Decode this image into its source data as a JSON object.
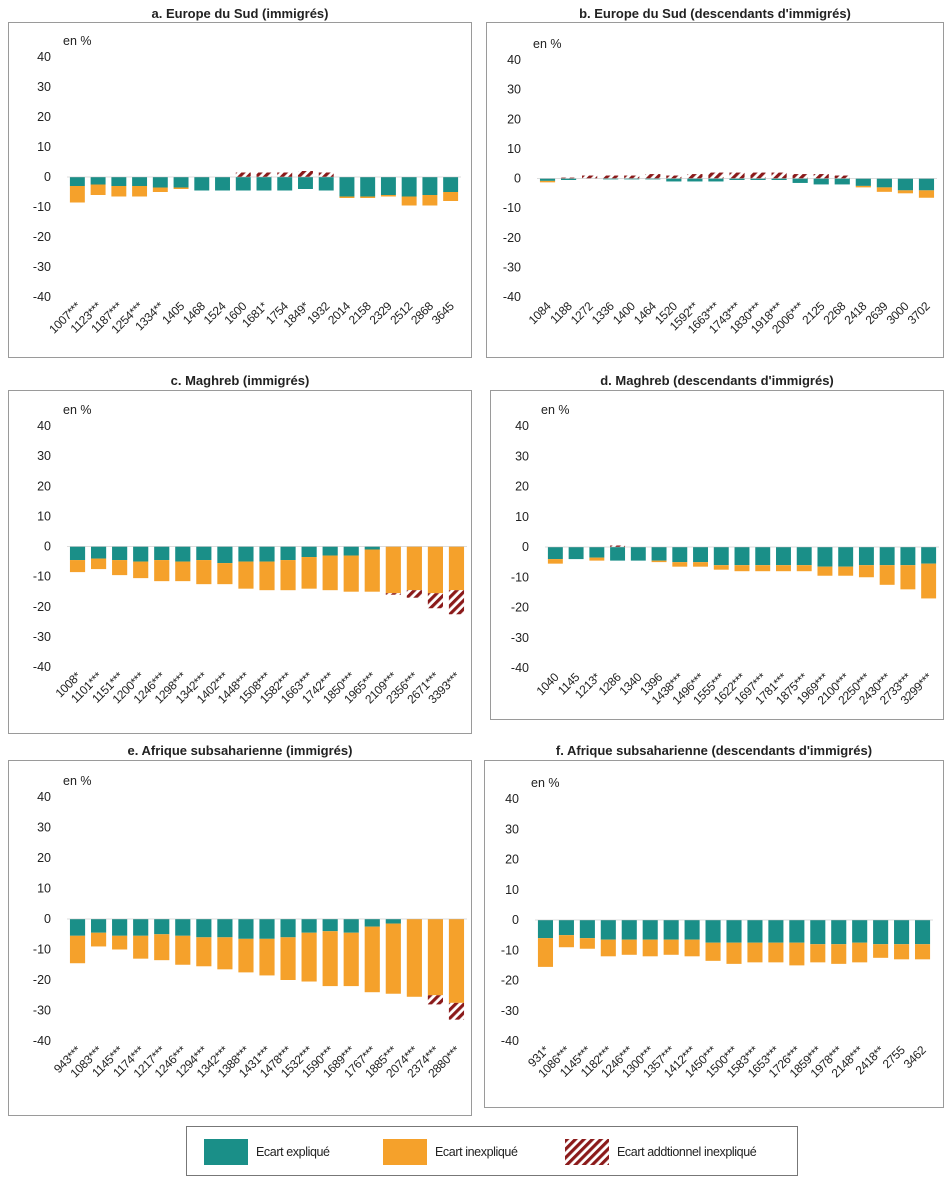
{
  "colors": {
    "explained": "#1a8f88",
    "unexplained": "#f5a12b",
    "additional": "#8b1a1a"
  },
  "legend": {
    "explained": "Ecart expliqué",
    "unexplained": "Ecart inexpliqué",
    "additional": "Ecart addtionnel inexpliqué"
  },
  "chart_data": [
    {
      "type": "bar",
      "stacked": true,
      "title": "a. Europe du Sud (immigrés)",
      "unit": "en %",
      "ylim": [
        -40,
        40
      ],
      "yticks": [
        40,
        30,
        20,
        10,
        0,
        -10,
        -20,
        -30,
        -40
      ],
      "categories": [
        "1007***",
        "1123***",
        "1187***",
        "1254***",
        "1334**",
        "1405",
        "1468",
        "1524",
        "1600",
        "1681*",
        "1754",
        "1849*",
        "1932",
        "2014",
        "2158",
        "2329",
        "2512",
        "2868",
        "3645"
      ],
      "series": [
        {
          "key": "explained",
          "values": [
            -3,
            -2.5,
            -3,
            -3,
            -3.5,
            -3.5,
            -4.5,
            -4.5,
            -4.5,
            -4.5,
            -4.5,
            -4,
            -4.5,
            -6.5,
            -6.5,
            -6,
            -6.5,
            -6,
            -5
          ]
        },
        {
          "key": "unexplained",
          "values": [
            -5.5,
            -3.5,
            -3.5,
            -3.5,
            -1.5,
            -0.5,
            0,
            0,
            0,
            0,
            0,
            0,
            0,
            -0.5,
            -0.5,
            -0.5,
            -3,
            -3.5,
            -3
          ]
        },
        {
          "key": "additional",
          "values": [
            0,
            0,
            0,
            0,
            0,
            0,
            0,
            0,
            1.5,
            1.5,
            1.5,
            2,
            1.5,
            0,
            0,
            0,
            0,
            0,
            0
          ]
        }
      ]
    },
    {
      "type": "bar",
      "stacked": true,
      "title": "b. Europe du Sud (descendants d'immigrés)",
      "unit": "en %",
      "ylim": [
        -40,
        40
      ],
      "yticks": [
        40,
        30,
        20,
        10,
        0,
        -10,
        -20,
        -30,
        -40
      ],
      "categories": [
        "1084",
        "1188",
        "1272",
        "1336",
        "1400",
        "1464",
        "1520",
        "1592**",
        "1663***",
        "1743***",
        "1830***",
        "1918***",
        "2006***",
        "2125",
        "2268",
        "2418",
        "2639",
        "3000",
        "3702"
      ],
      "series": [
        {
          "key": "explained",
          "values": [
            -0.8,
            -0.5,
            0,
            -0.3,
            -0.3,
            -0.3,
            -1,
            -1,
            -1,
            -0.5,
            -0.5,
            -0.5,
            -1.5,
            -2,
            -2,
            -2.5,
            -3,
            -4,
            -4
          ]
        },
        {
          "key": "unexplained",
          "values": [
            -0.5,
            0,
            0,
            0,
            0,
            0,
            0,
            0,
            0,
            0,
            0,
            0,
            0,
            0,
            0,
            -0.5,
            -1.5,
            -1,
            -2.5
          ]
        },
        {
          "key": "additional",
          "values": [
            0,
            0.3,
            1,
            1,
            1,
            1.5,
            1,
            1.5,
            2,
            2,
            2,
            2,
            1.5,
            1.5,
            1,
            0,
            0,
            0,
            0
          ]
        }
      ]
    },
    {
      "type": "bar",
      "stacked": true,
      "title": "c. Maghreb (immigrés)",
      "unit": "en %",
      "ylim": [
        -40,
        40
      ],
      "yticks": [
        40,
        30,
        20,
        10,
        0,
        -10,
        -20,
        -30,
        -40
      ],
      "categories": [
        "1008*",
        "1101***",
        "1151***",
        "1200***",
        "1246***",
        "1298***",
        "1342***",
        "1402***",
        "1448***",
        "1508***",
        "1582***",
        "1663***",
        "1742***",
        "1850***",
        "1965***",
        "2109***",
        "2356***",
        "2671***",
        "3393***"
      ],
      "series": [
        {
          "key": "explained",
          "values": [
            -4.5,
            -4,
            -4.5,
            -5,
            -4.5,
            -5,
            -4.5,
            -5.5,
            -5,
            -5,
            -4.5,
            -3.5,
            -3,
            -3,
            -1,
            0,
            0,
            0,
            0
          ]
        },
        {
          "key": "unexplained",
          "values": [
            -4,
            -3.5,
            -5,
            -5.5,
            -7,
            -6.5,
            -8,
            -7,
            -9,
            -9.5,
            -10,
            -10.5,
            -11.5,
            -12,
            -14,
            -15.5,
            -14.5,
            -15.5,
            -14.5
          ]
        },
        {
          "key": "additional",
          "values": [
            0,
            0,
            0,
            0,
            0,
            0,
            0,
            0,
            0,
            0,
            0,
            0,
            0,
            0,
            0,
            -0.5,
            -2.5,
            -5,
            -8
          ]
        }
      ]
    },
    {
      "type": "bar",
      "stacked": true,
      "title": "d. Maghreb (descendants d'immigrés)",
      "unit": "en %",
      "ylim": [
        -40,
        40
      ],
      "yticks": [
        40,
        30,
        20,
        10,
        0,
        -10,
        -20,
        -30,
        -40
      ],
      "categories": [
        "1040",
        "1145",
        "1213*",
        "1286",
        "1340",
        "1396",
        "1438***",
        "1496***",
        "1555***",
        "1622***",
        "1697***",
        "1781***",
        "1875***",
        "1969***",
        "2100***",
        "2250***",
        "2430***",
        "2733***",
        "3299***"
      ],
      "series": [
        {
          "key": "explained",
          "values": [
            -4,
            -4,
            -3.5,
            -4.5,
            -4.5,
            -4.5,
            -5,
            -5,
            -6,
            -6,
            -6,
            -6,
            -6,
            -6.5,
            -6.5,
            -6,
            -6,
            -6,
            -5.5
          ]
        },
        {
          "key": "unexplained",
          "values": [
            -1.5,
            0,
            -1,
            0,
            0,
            -0.5,
            -1.5,
            -1.5,
            -1.5,
            -2,
            -2,
            -2,
            -2,
            -3,
            -3,
            -4,
            -6.5,
            -8,
            -11.5
          ]
        },
        {
          "key": "additional",
          "values": [
            0,
            0,
            0,
            0.5,
            0,
            0,
            0,
            0,
            0,
            0,
            0,
            0,
            0,
            0,
            0,
            0,
            0,
            0,
            0
          ]
        }
      ]
    },
    {
      "type": "bar",
      "stacked": true,
      "title": "e. Afrique subsaharienne (immigrés)",
      "unit": "en %",
      "ylim": [
        -40,
        40
      ],
      "yticks": [
        40,
        30,
        20,
        10,
        0,
        -10,
        -20,
        -30,
        -40
      ],
      "categories": [
        "943***",
        "1083***",
        "1145***",
        "1174***",
        "1217***",
        "1246***",
        "1294***",
        "1342***",
        "1388***",
        "1431***",
        "1478***",
        "1532***",
        "1590***",
        "1689***",
        "1767***",
        "1885***",
        "2074***",
        "2374***",
        "2880***"
      ],
      "series": [
        {
          "key": "explained",
          "values": [
            -5.5,
            -4.5,
            -5.5,
            -5.5,
            -5,
            -5.5,
            -6,
            -6,
            -6.5,
            -6.5,
            -6,
            -4.5,
            -4,
            -4.5,
            -2.5,
            -1.5,
            0,
            0,
            0
          ]
        },
        {
          "key": "unexplained",
          "values": [
            -9,
            -4.5,
            -4.5,
            -7.5,
            -8.5,
            -9.5,
            -9.5,
            -10.5,
            -11,
            -12,
            -14,
            -16,
            -18,
            -17.5,
            -21.5,
            -23,
            -25.5,
            -25,
            -27.5
          ]
        },
        {
          "key": "additional",
          "values": [
            0,
            0,
            0,
            0,
            0,
            0,
            0,
            0,
            0,
            0,
            0,
            0,
            0,
            0,
            0,
            0,
            0,
            -3,
            -5.5
          ]
        }
      ]
    },
    {
      "type": "bar",
      "stacked": true,
      "title": "f. Afrique subsaharienne (descendants d'immigrés)",
      "unit": "en %",
      "ylim": [
        -40,
        40
      ],
      "yticks": [
        40,
        30,
        20,
        10,
        0,
        -10,
        -20,
        -30,
        -40
      ],
      "categories": [
        "931*",
        "1086***",
        "1145***",
        "1182***",
        "1246***",
        "1300***",
        "1357***",
        "1412***",
        "1450***",
        "1500***",
        "1583***",
        "1653***",
        "1726***",
        "1859***",
        "1978***",
        "2148***",
        "2418**",
        "2755",
        "3462"
      ],
      "series": [
        {
          "key": "explained",
          "values": [
            -6,
            -5,
            -6,
            -6.5,
            -6.5,
            -6.5,
            -6.5,
            -6.5,
            -7.5,
            -7.5,
            -7.5,
            -7.5,
            -7.5,
            -8,
            -8,
            -7.5,
            -8,
            -8,
            -8
          ]
        },
        {
          "key": "unexplained",
          "values": [
            -9.5,
            -4,
            -3.5,
            -5.5,
            -5,
            -5.5,
            -5,
            -5.5,
            -6,
            -7,
            -6.5,
            -6.5,
            -7.5,
            -6,
            -6.5,
            -6.5,
            -4.5,
            -5,
            -5
          ]
        },
        {
          "key": "additional",
          "values": [
            0,
            0,
            0,
            0,
            0,
            0,
            0,
            0,
            0,
            0,
            0,
            0,
            0,
            0,
            0,
            0,
            0,
            0,
            0
          ]
        }
      ]
    }
  ]
}
